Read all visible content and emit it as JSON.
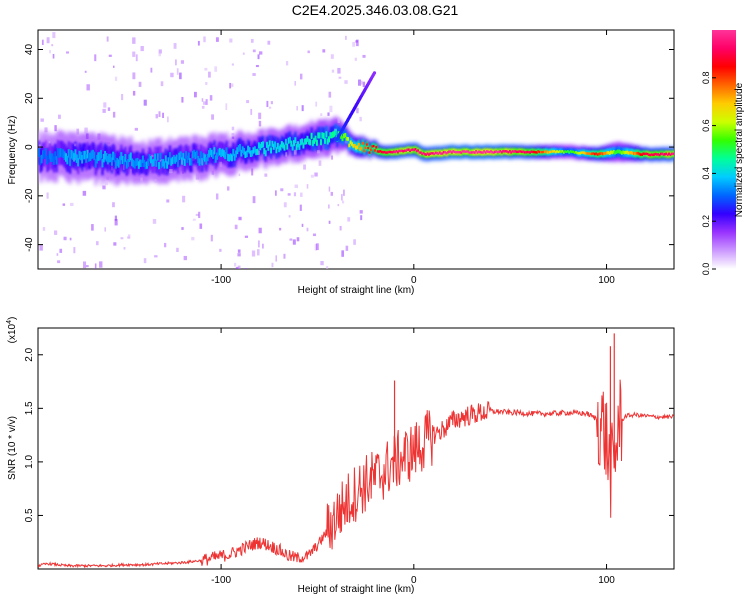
{
  "page": {
    "title": "C2E4.2025.346.03.08.G21"
  },
  "colorbar": {
    "label": "Normalized spectral amplitude",
    "ticks": [
      {
        "value": 0.0,
        "label": "0.0"
      },
      {
        "value": 0.2,
        "label": "0.2"
      },
      {
        "value": 0.4,
        "label": "0.4"
      },
      {
        "value": 0.6,
        "label": "0.6"
      },
      {
        "value": 0.8,
        "label": "0.8"
      }
    ],
    "range": [
      0,
      1
    ],
    "colors": [
      "#ffffff",
      "#cc99ff",
      "#9933ff",
      "#3300ff",
      "#0066ff",
      "#00ccff",
      "#00ff99",
      "#33ff00",
      "#ccff00",
      "#ffcc00",
      "#ff6600",
      "#ff0000",
      "#ff0066",
      "#ff3399"
    ]
  },
  "chart_data": [
    {
      "type": "heatmap",
      "title": "",
      "xlabel": "Height of straight line (km)",
      "ylabel": "Frequency (Hz)",
      "xlim": [
        -195,
        135
      ],
      "ylim": [
        -50,
        48
      ],
      "xticks": [
        {
          "value": -100,
          "label": "-100"
        },
        {
          "value": 0,
          "label": "0"
        },
        {
          "value": 100,
          "label": "100"
        }
      ],
      "yticks": [
        {
          "value": -40,
          "label": "-40"
        },
        {
          "value": -20,
          "label": "-20"
        },
        {
          "value": 0,
          "label": "0"
        },
        {
          "value": 20,
          "label": "20"
        },
        {
          "value": 40,
          "label": "40"
        }
      ],
      "ridge": {
        "x": [
          -195,
          -180,
          -160,
          -140,
          -120,
          -100,
          -80,
          -60,
          -50,
          -40,
          -35,
          -30,
          -25,
          -20,
          -10,
          0,
          5,
          20,
          40,
          60,
          80,
          95,
          105,
          120,
          135
        ],
        "y": [
          -4,
          -4,
          -5,
          -6,
          -5,
          -3,
          -1,
          2,
          3,
          5,
          3,
          1,
          0,
          -2,
          -2,
          -1,
          -3,
          -2,
          -2,
          -2,
          -2,
          -3,
          -2,
          -3,
          -3
        ],
        "amplitude": [
          0.3,
          0.35,
          0.35,
          0.35,
          0.35,
          0.35,
          0.4,
          0.4,
          0.45,
          0.45,
          0.6,
          0.7,
          0.8,
          0.85,
          0.95,
          0.95,
          0.95,
          1.0,
          1.0,
          0.9,
          0.5,
          0.85,
          0.5,
          0.9,
          0.95
        ],
        "spread_hz": [
          7,
          7,
          7,
          6,
          6,
          6,
          5,
          5,
          5,
          5,
          3,
          3,
          2,
          2,
          2,
          2,
          2,
          2,
          2,
          2,
          2,
          2,
          3,
          2,
          2
        ]
      },
      "annotations": [
        "whistler-like trace rising from ~-35 km to ~+30 Hz near -20 km"
      ]
    },
    {
      "type": "line",
      "title": "",
      "xlabel": "Height of straight line (km)",
      "ylabel": "SNR (10 * v/v)",
      "yscale_label": "(x10",
      "yscale_exponent": "4",
      "series_color": "#ee3333",
      "xlim": [
        -195,
        135
      ],
      "ylim": [
        0,
        2.25
      ],
      "xticks": [
        {
          "value": -100,
          "label": "-100"
        },
        {
          "value": 0,
          "label": "0"
        },
        {
          "value": 100,
          "label": "100"
        }
      ],
      "yticks": [
        {
          "value": 0.5,
          "label": "0.5"
        },
        {
          "value": 1.0,
          "label": "1.0"
        },
        {
          "value": 1.5,
          "label": "1.5"
        },
        {
          "value": 2.0,
          "label": "2.0"
        }
      ],
      "series": [
        {
          "name": "SNR",
          "x": [
            -195,
            -190,
            -185,
            -180,
            -170,
            -160,
            -150,
            -140,
            -130,
            -120,
            -110,
            -100,
            -95,
            -90,
            -85,
            -80,
            -75,
            -70,
            -65,
            -60,
            -55,
            -50,
            -45,
            -40,
            -35,
            -30,
            -25,
            -20,
            -15,
            -10,
            -5,
            0,
            5,
            10,
            15,
            20,
            25,
            30,
            35,
            40,
            45,
            50,
            55,
            60,
            70,
            80,
            90,
            95,
            98,
            100,
            102,
            104,
            106,
            110,
            115,
            120,
            125,
            130,
            135
          ],
          "y": [
            0.03,
            0.05,
            0.04,
            0.03,
            0.03,
            0.03,
            0.04,
            0.04,
            0.05,
            0.06,
            0.08,
            0.12,
            0.14,
            0.18,
            0.22,
            0.25,
            0.22,
            0.18,
            0.12,
            0.1,
            0.12,
            0.22,
            0.35,
            0.5,
            0.62,
            0.72,
            0.8,
            0.85,
            0.92,
            1.0,
            1.05,
            1.1,
            1.18,
            1.25,
            1.3,
            1.38,
            1.42,
            1.44,
            1.46,
            1.47,
            1.47,
            1.46,
            1.46,
            1.45,
            1.45,
            1.46,
            1.45,
            1.4,
            1.35,
            1.2,
            0.9,
            0.95,
            1.35,
            1.43,
            1.44,
            1.43,
            1.42,
            1.42,
            1.42
          ],
          "peaks": [
            {
              "x": -10,
              "y": 1.76
            },
            {
              "x": 102,
              "y": 2.08
            },
            {
              "x": 104,
              "y": 2.2
            }
          ]
        }
      ]
    }
  ]
}
